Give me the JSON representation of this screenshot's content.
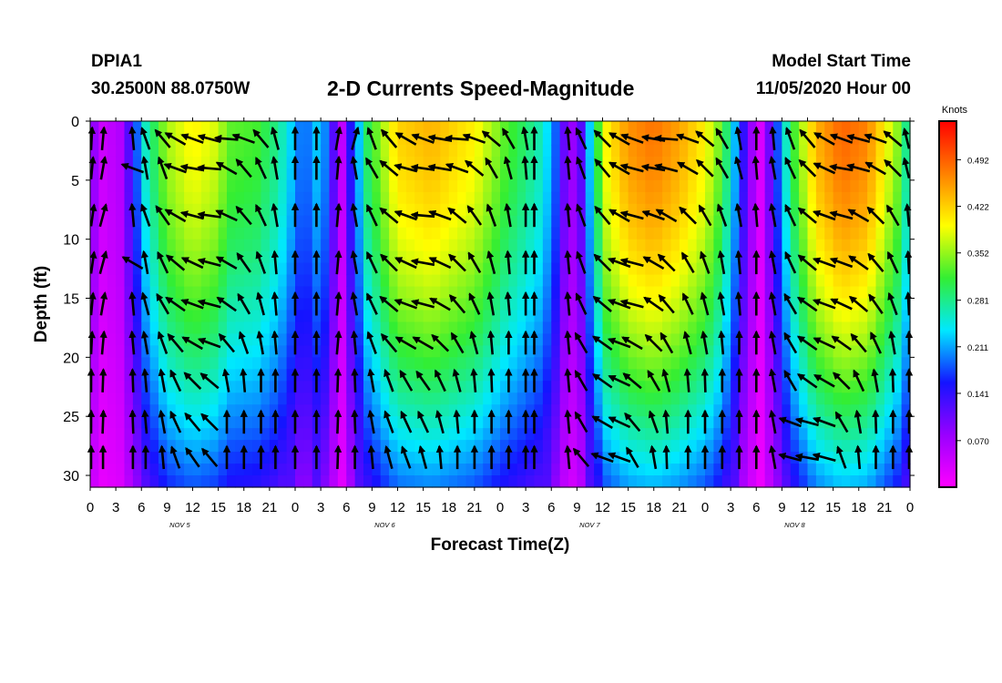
{
  "header": {
    "station_id": "DPIA1",
    "station_coords": "30.2500N 88.0750W",
    "title": "2-D Currents Speed-Magnitude",
    "model_start_label": "Model Start Time",
    "model_start_value": "11/05/2020 Hour 00"
  },
  "chart_data": {
    "type": "heatmap",
    "title": "2-D Currents Speed-Magnitude",
    "xlabel": "Forecast Time(Z)",
    "ylabel": "Depth (ft)",
    "x_tick_labels": [
      "0",
      "3",
      "6",
      "9",
      "12",
      "15",
      "18",
      "21",
      "0",
      "3",
      "6",
      "9",
      "12",
      "15",
      "18",
      "21",
      "0",
      "3",
      "6",
      "9",
      "12",
      "15",
      "18",
      "21",
      "0",
      "3",
      "6",
      "9",
      "12",
      "15",
      "18",
      "21",
      "0"
    ],
    "x_range_hours": [
      0,
      96
    ],
    "date_labels": [
      {
        "label": "NOV 5",
        "hour": 10.5
      },
      {
        "label": "NOV 6",
        "hour": 34.5
      },
      {
        "label": "NOV 7",
        "hour": 58.5
      },
      {
        "label": "NOV 8",
        "hour": 82.5
      }
    ],
    "y_tick_labels": [
      "0",
      "5",
      "10",
      "15",
      "20",
      "25",
      "30"
    ],
    "y_ticks": [
      0,
      5,
      10,
      15,
      20,
      25,
      30
    ],
    "ylim": [
      0,
      31
    ],
    "y_inverted": true,
    "colorbar": {
      "unit": "Knots",
      "range": [
        0,
        0.55
      ],
      "tick_labels": [
        "0.492",
        "0.422",
        "0.352",
        "0.281",
        "0.211",
        "0.141",
        "0.070"
      ],
      "tick_values": [
        0.492,
        0.422,
        0.352,
        0.281,
        0.211,
        0.141,
        0.07
      ],
      "colors": [
        "#ff00ff",
        "#9900ff",
        "#1414ff",
        "#00e8ff",
        "#33ee33",
        "#ffff00",
        "#ff8000",
        "#ff0000"
      ]
    },
    "speed_profile": {
      "hours": [
        0,
        1.5,
        3.5,
        5,
        6.5,
        9,
        12,
        14.5,
        16.5,
        19.5,
        22,
        25,
        27,
        28.5,
        29.5,
        30.5,
        32.5,
        36,
        40,
        45,
        48.5,
        50.5,
        53,
        55,
        56,
        57.5,
        59,
        60.5,
        63,
        66,
        69,
        72,
        74,
        75.5,
        77,
        78.5,
        80,
        82,
        85,
        88,
        91,
        94.5,
        96
      ],
      "surface_knots": [
        0.1,
        0.04,
        0.06,
        0.15,
        0.26,
        0.36,
        0.4,
        0.38,
        0.33,
        0.32,
        0.28,
        0.18,
        0.24,
        0.12,
        0.05,
        0.15,
        0.3,
        0.42,
        0.44,
        0.4,
        0.33,
        0.3,
        0.26,
        0.16,
        0.06,
        0.12,
        0.28,
        0.4,
        0.46,
        0.48,
        0.45,
        0.4,
        0.33,
        0.22,
        0.1,
        0.03,
        0.14,
        0.3,
        0.44,
        0.49,
        0.47,
        0.35,
        0.25
      ]
    },
    "vector_rows_depth_ft": [
      1.5,
      4,
      8,
      12,
      15.5,
      18.8,
      22,
      25.5,
      28.5
    ],
    "vector_columns_hour": [
      0,
      1.5,
      5,
      6.5,
      8.5,
      10,
      12,
      14,
      16,
      18,
      20,
      21.7,
      24,
      26.5,
      29,
      31,
      33,
      35,
      37,
      39,
      41,
      43,
      45,
      47,
      49,
      51,
      52,
      56,
      57.5,
      60,
      62,
      63.5,
      66,
      67.5,
      70,
      72,
      74,
      76,
      78,
      80,
      82,
      84,
      86,
      88,
      90,
      92,
      94,
      96
    ],
    "vector_angles_deg": [
      [
        -80,
        -85,
        -95,
        -110,
        -130,
        -150,
        -160,
        -165,
        -175,
        -160,
        -130,
        -105,
        -90,
        -90,
        -80,
        -75,
        -110,
        -130,
        -150,
        -160,
        -170,
        -175,
        -160,
        -140,
        -120,
        -100,
        -90,
        -95,
        -115,
        -135,
        -150,
        -160,
        -170,
        -175,
        -160,
        -140,
        -120,
        -100,
        -90,
        -95,
        -110,
        -130,
        -150,
        -160,
        -165,
        -160,
        -140,
        -120
      ],
      [
        -75,
        -80,
        -160,
        -100,
        -110,
        -160,
        -170,
        -175,
        -150,
        -130,
        -115,
        -100,
        -90,
        -90,
        -85,
        -100,
        -120,
        -140,
        -165,
        -172,
        -170,
        -160,
        -140,
        -120,
        -105,
        -95,
        -90,
        -95,
        -110,
        -130,
        -150,
        -165,
        -170,
        -165,
        -150,
        -135,
        -120,
        -105,
        -95,
        -100,
        -115,
        -135,
        -155,
        -170,
        -165,
        -150,
        -135,
        -120
      ],
      [
        -70,
        -75,
        -95,
        -110,
        -125,
        -150,
        -165,
        -172,
        -155,
        -130,
        -115,
        -100,
        -90,
        -90,
        -85,
        -100,
        -115,
        -140,
        -160,
        -175,
        -160,
        -140,
        -125,
        -110,
        -100,
        -90,
        -90,
        -95,
        -110,
        -130,
        -150,
        -165,
        -160,
        -150,
        -135,
        -120,
        -110,
        -100,
        -95,
        -100,
        -115,
        -140,
        -160,
        -165,
        -150,
        -135,
        -120,
        -105
      ],
      [
        -70,
        -75,
        -150,
        -100,
        -115,
        -140,
        -155,
        -165,
        -150,
        -125,
        -110,
        -95,
        -90,
        -90,
        -85,
        -100,
        -115,
        -135,
        -155,
        -170,
        -155,
        -135,
        -120,
        -105,
        -95,
        -90,
        -90,
        -95,
        -110,
        -135,
        -160,
        -165,
        -150,
        -135,
        -120,
        -110,
        -100,
        -95,
        -90,
        -100,
        -115,
        -140,
        -160,
        -160,
        -145,
        -130,
        -115,
        -100
      ],
      [
        -75,
        -80,
        -95,
        -105,
        -120,
        -145,
        -160,
        -165,
        -145,
        -120,
        -105,
        -95,
        -90,
        -90,
        -85,
        -100,
        -115,
        -140,
        -160,
        -165,
        -150,
        -130,
        -115,
        -100,
        -95,
        -90,
        -90,
        -95,
        -115,
        -140,
        -160,
        -165,
        -145,
        -130,
        -115,
        -105,
        -100,
        -95,
        -90,
        -100,
        -120,
        -145,
        -160,
        -155,
        -140,
        -125,
        -110,
        -100
      ],
      [
        -80,
        -85,
        -95,
        -100,
        -110,
        -130,
        -150,
        -160,
        -130,
        -110,
        -100,
        -95,
        -90,
        -90,
        -85,
        -95,
        -110,
        -130,
        -150,
        -150,
        -135,
        -120,
        -105,
        -95,
        -90,
        -90,
        -90,
        -95,
        -120,
        -145,
        -160,
        -150,
        -135,
        -120,
        -105,
        -100,
        -95,
        -90,
        -90,
        -100,
        -120,
        -145,
        -155,
        -145,
        -130,
        -115,
        -100,
        -95
      ],
      [
        -85,
        -88,
        -92,
        -95,
        -100,
        -115,
        -135,
        -140,
        -100,
        -95,
        -90,
        -90,
        -90,
        -90,
        -88,
        -92,
        -100,
        -110,
        -120,
        -125,
        -115,
        -105,
        -95,
        -92,
        -90,
        -90,
        -90,
        -95,
        -120,
        -145,
        -155,
        -140,
        -120,
        -105,
        -95,
        -92,
        -90,
        -90,
        -90,
        -100,
        -120,
        -145,
        -150,
        -135,
        -115,
        -100,
        -92,
        -90
      ],
      [
        -85,
        -88,
        -92,
        -95,
        -100,
        -115,
        -130,
        -135,
        -90,
        -90,
        -90,
        -90,
        -90,
        -90,
        -88,
        -92,
        -100,
        -110,
        -115,
        -115,
        -105,
        -95,
        -90,
        -90,
        -90,
        -90,
        -90,
        -95,
        -120,
        -150,
        -155,
        -130,
        -110,
        -95,
        -90,
        -90,
        -90,
        -90,
        -90,
        -100,
        -160,
        -165,
        -160,
        -120,
        -100,
        -92,
        -90,
        -90
      ],
      [
        -88,
        -90,
        -90,
        -90,
        -95,
        -110,
        -125,
        -130,
        -90,
        -90,
        -90,
        -90,
        -90,
        -90,
        -88,
        -90,
        -95,
        -105,
        -110,
        -105,
        -95,
        -90,
        -90,
        -90,
        -90,
        -90,
        -90,
        -95,
        -130,
        -160,
        -160,
        -120,
        -100,
        -92,
        -90,
        -90,
        -90,
        -90,
        -90,
        -100,
        -165,
        -170,
        -165,
        -110,
        -95,
        -90,
        -90,
        -90
      ]
    ]
  }
}
